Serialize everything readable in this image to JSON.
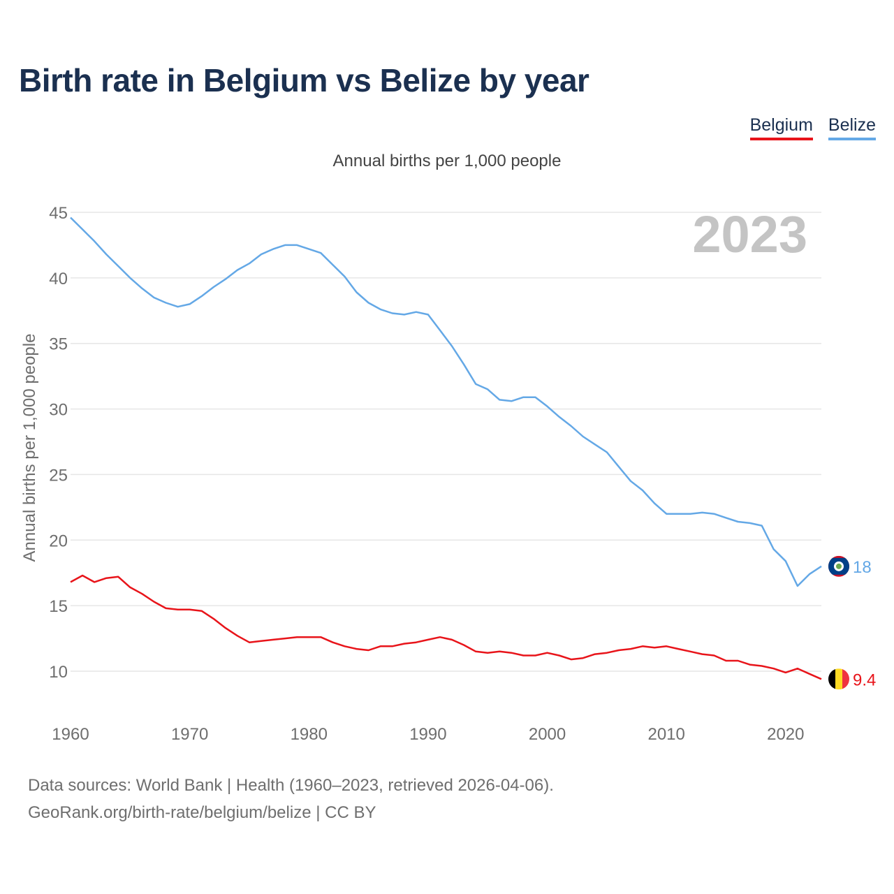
{
  "title": "Birth rate in Belgium vs Belize by year",
  "subtitle": "Annual births per 1,000 people",
  "legend": [
    {
      "name": "Belgium",
      "color": "#e8141a"
    },
    {
      "name": "Belize",
      "color": "#64a8e6"
    }
  ],
  "year_watermark": "2023",
  "footer": {
    "line1": "Data sources: World Bank | Health (1960–2023, retrieved 2026-04-06).",
    "line2": "GeoRank.org/birth-rate/belgium/belize | CC BY"
  },
  "chart_data": {
    "type": "line",
    "title": "Birth rate in Belgium vs Belize by year",
    "ylabel": "Annual births per 1,000 people",
    "xlabel": "",
    "xlim": [
      1960,
      2023
    ],
    "ylim": [
      7,
      45
    ],
    "x_ticks": [
      1960,
      1970,
      1980,
      1990,
      2000,
      2010,
      2020
    ],
    "y_ticks": [
      10,
      15,
      20,
      25,
      30,
      35,
      40,
      45
    ],
    "grid": true,
    "series": [
      {
        "name": "Belgium",
        "color": "#e8141a",
        "end_label": "9.4",
        "flag": "belgium-flag-icon",
        "x": [
          1960,
          1961,
          1962,
          1963,
          1964,
          1965,
          1966,
          1967,
          1968,
          1969,
          1970,
          1971,
          1972,
          1973,
          1974,
          1975,
          1976,
          1977,
          1978,
          1979,
          1980,
          1981,
          1982,
          1983,
          1984,
          1985,
          1986,
          1987,
          1988,
          1989,
          1990,
          1991,
          1992,
          1993,
          1994,
          1995,
          1996,
          1997,
          1998,
          1999,
          2000,
          2001,
          2002,
          2003,
          2004,
          2005,
          2006,
          2007,
          2008,
          2009,
          2010,
          2011,
          2012,
          2013,
          2014,
          2015,
          2016,
          2017,
          2018,
          2019,
          2020,
          2021,
          2022,
          2023
        ],
        "values": [
          16.8,
          17.3,
          16.8,
          17.1,
          17.2,
          16.4,
          15.9,
          15.3,
          14.8,
          14.7,
          14.7,
          14.6,
          14.0,
          13.3,
          12.7,
          12.2,
          12.3,
          12.4,
          12.5,
          12.6,
          12.6,
          12.6,
          12.2,
          11.9,
          11.7,
          11.6,
          11.9,
          11.9,
          12.1,
          12.2,
          12.4,
          12.6,
          12.4,
          12.0,
          11.5,
          11.4,
          11.5,
          11.4,
          11.2,
          11.2,
          11.4,
          11.2,
          10.9,
          11.0,
          11.3,
          11.4,
          11.6,
          11.7,
          11.9,
          11.8,
          11.9,
          11.7,
          11.5,
          11.3,
          11.2,
          10.8,
          10.8,
          10.5,
          10.4,
          10.2,
          9.9,
          10.2,
          9.8,
          9.4
        ]
      },
      {
        "name": "Belize",
        "color": "#64a8e6",
        "end_label": "18",
        "flag": "belize-flag-icon",
        "x": [
          1960,
          1961,
          1962,
          1963,
          1964,
          1965,
          1966,
          1967,
          1968,
          1969,
          1970,
          1971,
          1972,
          1973,
          1974,
          1975,
          1976,
          1977,
          1978,
          1979,
          1980,
          1981,
          1982,
          1983,
          1984,
          1985,
          1986,
          1987,
          1988,
          1989,
          1990,
          1991,
          1992,
          1993,
          1994,
          1995,
          1996,
          1997,
          1998,
          1999,
          2000,
          2001,
          2002,
          2003,
          2004,
          2005,
          2006,
          2007,
          2008,
          2009,
          2010,
          2011,
          2012,
          2013,
          2014,
          2015,
          2016,
          2017,
          2018,
          2019,
          2020,
          2021,
          2022,
          2023
        ],
        "values": [
          44.6,
          43.7,
          42.8,
          41.8,
          40.9,
          40.0,
          39.2,
          38.5,
          38.1,
          37.8,
          38.0,
          38.6,
          39.3,
          39.9,
          40.6,
          41.1,
          41.8,
          42.2,
          42.5,
          42.5,
          42.2,
          41.9,
          41.0,
          40.1,
          38.9,
          38.1,
          37.6,
          37.3,
          37.2,
          37.4,
          37.2,
          36.0,
          34.8,
          33.4,
          31.9,
          31.5,
          30.7,
          30.6,
          30.9,
          30.9,
          30.2,
          29.4,
          28.7,
          27.9,
          27.3,
          26.7,
          25.6,
          24.5,
          23.8,
          22.8,
          22.0,
          22.0,
          22.0,
          22.1,
          22.0,
          21.7,
          21.4,
          21.3,
          21.1,
          19.3,
          18.4,
          16.5,
          17.4,
          18.0
        ]
      }
    ]
  }
}
